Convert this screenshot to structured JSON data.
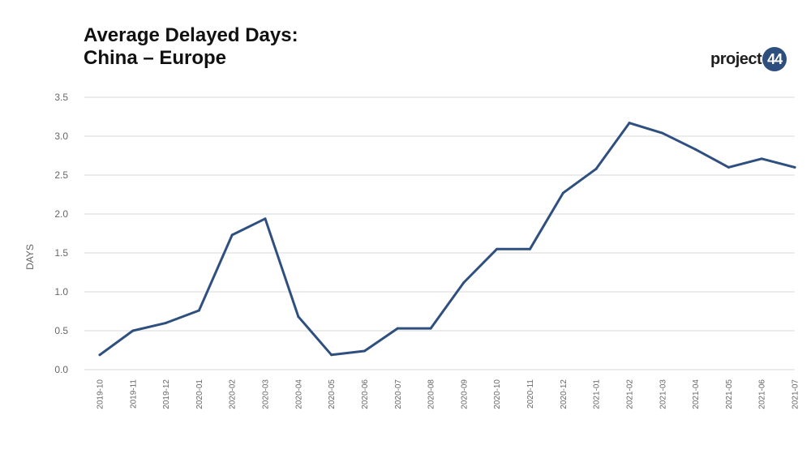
{
  "title_lines": [
    "Average Delayed Days:",
    "China – Europe"
  ],
  "logo": {
    "text": "project",
    "badge": "44",
    "badge_color": "#2e4f7e"
  },
  "colors": {
    "line": "#2f507f",
    "grid": "#d9d9d9"
  },
  "chart_data": {
    "type": "line",
    "title": "Average Delayed Days: China – Europe",
    "xlabel": "",
    "ylabel": "DAYS",
    "ylim": [
      0,
      3.5
    ],
    "yticks": [
      "0.0",
      "0.5",
      "1.0",
      "1.5",
      "2.0",
      "2.5",
      "3.0",
      "3.5"
    ],
    "grid": true,
    "categories": [
      "2019-10",
      "2019-11",
      "2019-12",
      "2020-01",
      "2020-02",
      "2020-03",
      "2020-04",
      "2020-05",
      "2020-06",
      "2020-07",
      "2020-08",
      "2020-09",
      "2020-10",
      "2020-11",
      "2020-12",
      "2021-01",
      "2021-02",
      "2021-03",
      "2021-04",
      "2021-05",
      "2021-06",
      "2021-07"
    ],
    "series": [
      {
        "values": [
          0.19,
          0.5,
          0.6,
          0.76,
          1.73,
          1.94,
          0.68,
          0.19,
          0.24,
          0.53,
          0.53,
          1.12,
          1.55,
          1.55,
          2.27,
          2.58,
          3.17,
          3.04,
          2.83,
          2.6,
          2.71,
          2.6
        ]
      }
    ]
  }
}
